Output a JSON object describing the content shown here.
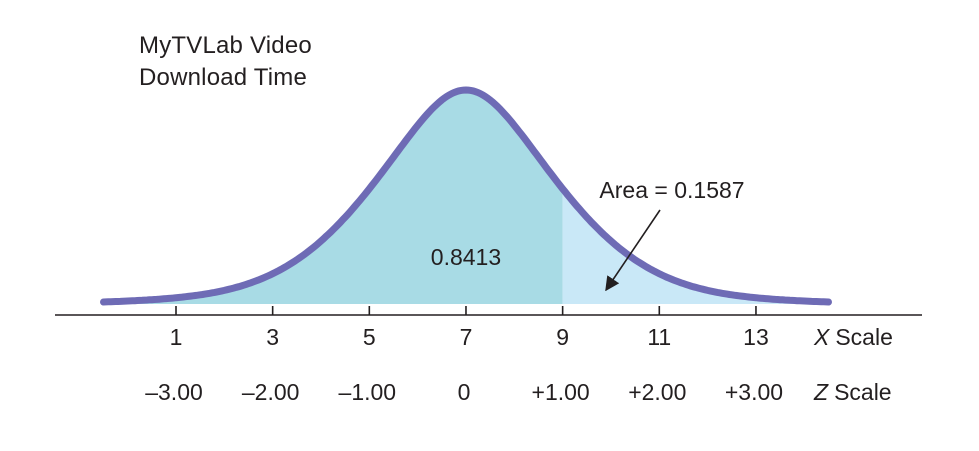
{
  "chart_data": {
    "type": "area",
    "title_lines": [
      "MyTVLab Video",
      "Download Time"
    ],
    "distribution": {
      "mean": 7,
      "std": 2
    },
    "x_range": [
      -0.5,
      14.5
    ],
    "x_scale": {
      "label_var": "X",
      "label_word": "Scale",
      "ticks": [
        1,
        3,
        5,
        7,
        9,
        11,
        13
      ],
      "tick_labels": [
        "1",
        "3",
        "5",
        "7",
        "9",
        "11",
        "13"
      ]
    },
    "z_scale": {
      "label_var": "Z",
      "label_word": "Scale",
      "tick_labels": [
        "–3.00",
        "–2.00",
        "–1.00",
        "0",
        "+1.00",
        "+2.00",
        "+3.00"
      ]
    },
    "shaded_regions": [
      {
        "name": "left",
        "from": -0.5,
        "to": 9,
        "area_label": "0.8413",
        "color": "#a8dbe5"
      },
      {
        "name": "right",
        "from": 9,
        "to": 14.5,
        "area_label": "Area = 0.1587",
        "color": "#c9e8f7"
      }
    ],
    "curve_color": "#6e6bb5",
    "axis_color": "#231f20"
  }
}
